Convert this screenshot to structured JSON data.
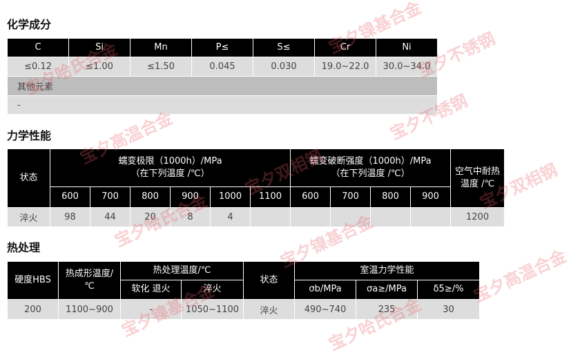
{
  "chemical": {
    "title": "化学成分",
    "headers": [
      "C",
      "Si",
      "Mn",
      "P≤",
      "S≤",
      "Cr",
      "Ni"
    ],
    "values": [
      "≤0.12",
      "≤1.00",
      "≤1.50",
      "0.045",
      "0.030",
      "19.0~22.0",
      "30.0~34.0"
    ],
    "other_label": "其他元素",
    "other_value": "-"
  },
  "mechanical": {
    "title": "力学性能",
    "state_label": "状态",
    "creep_limit": "蠕变极限（1000h）/MPa",
    "creep_limit_sub": "（在下列温度 /℃）",
    "rupture": "蠕变破断强度（1000h）/MPa",
    "rupture_sub": "（在下列温度 /℃）",
    "heat_res": "空气中耐热温度 /℃",
    "temps1": [
      "600",
      "700",
      "800",
      "900",
      "1000",
      "1100"
    ],
    "temps2": [
      "600",
      "700",
      "800",
      "900"
    ],
    "row": {
      "state": "淬火",
      "limit": [
        "98",
        "44",
        "20",
        "8",
        "4",
        ""
      ],
      "rupture": [
        "",
        "",
        "",
        ""
      ],
      "heat": "1200"
    }
  },
  "heat": {
    "title": "热处理",
    "hardness": "硬度HBS",
    "forming": "热成形温度/℃",
    "treat": "热处理温度/℃",
    "soft": "软化 退火",
    "quench": "淬火",
    "state": "状态",
    "room": "室温力学性能",
    "sb": "σb/MPa",
    "sa": "σa≥/MPa",
    "d5": "δ5≥/%",
    "row": {
      "hardness": "200",
      "forming": "1100~900",
      "soft": "-",
      "quench": "1050~1100",
      "state": "淬火",
      "sb": "490~740",
      "sa": "235",
      "d5": "30"
    }
  },
  "watermarks": [
    "宝夕哈氏合金",
    "宝夕镍基合金",
    "宝夕不锈钢",
    "宝夕双相钢",
    "宝夕高温合金"
  ]
}
